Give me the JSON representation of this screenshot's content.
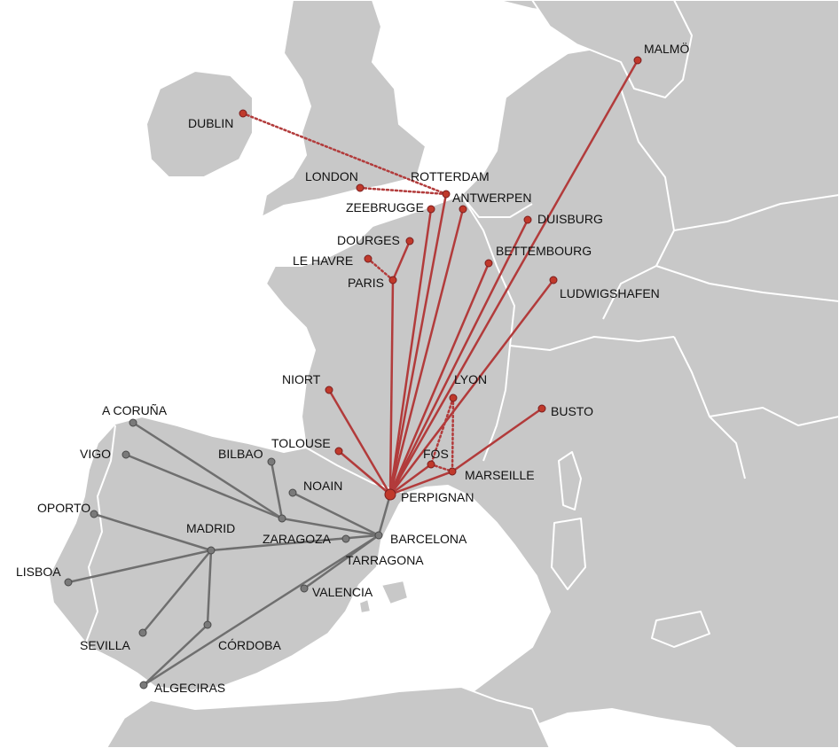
{
  "colors": {
    "red_network": "#b23b3b",
    "red_node": "#c0392b",
    "grey_network": "#6f6f6f",
    "grey_node": "#7a7a7a",
    "land": "#c8c8c8",
    "sea": "#ffffff"
  },
  "cities": [
    {
      "id": "malmo",
      "label": "MALMÖ",
      "net": "red"
    },
    {
      "id": "dublin",
      "label": "DUBLIN",
      "net": "red"
    },
    {
      "id": "london",
      "label": "LONDON",
      "net": "red"
    },
    {
      "id": "rotterdam",
      "label": "ROTTERDAM",
      "net": "red"
    },
    {
      "id": "antwerpen",
      "label": "ANTWERPEN",
      "net": "red"
    },
    {
      "id": "zeebrugge",
      "label": "ZEEBRUGGE",
      "net": "red"
    },
    {
      "id": "duisburg",
      "label": "DUISBURG",
      "net": "red"
    },
    {
      "id": "dourges",
      "label": "DOURGES",
      "net": "red"
    },
    {
      "id": "lehavre",
      "label": "LE HAVRE",
      "net": "red"
    },
    {
      "id": "paris",
      "label": "PARIS",
      "net": "red"
    },
    {
      "id": "bettembourg",
      "label": "BETTEMBOURG",
      "net": "red"
    },
    {
      "id": "ludwigshafen",
      "label": "LUDWIGSHAFEN",
      "net": "red"
    },
    {
      "id": "niort",
      "label": "NIORT",
      "net": "red"
    },
    {
      "id": "lyon",
      "label": "LYON",
      "net": "red"
    },
    {
      "id": "busto",
      "label": "BUSTO",
      "net": "red"
    },
    {
      "id": "tolouse",
      "label": "TOLOUSE",
      "net": "red"
    },
    {
      "id": "fos",
      "label": "FOS",
      "net": "red"
    },
    {
      "id": "marseille",
      "label": "MARSEILLE",
      "net": "red"
    },
    {
      "id": "perpignan",
      "label": "PERPIGNAN",
      "net": "red"
    },
    {
      "id": "acoruna",
      "label": "A CORUÑA",
      "net": "grey"
    },
    {
      "id": "vigo",
      "label": "VIGO",
      "net": "grey"
    },
    {
      "id": "bilbao",
      "label": "BILBAO",
      "net": "grey"
    },
    {
      "id": "noain",
      "label": "NOAIN",
      "net": "grey"
    },
    {
      "id": "oporto",
      "label": "OPORTO",
      "net": "grey"
    },
    {
      "id": "madrid",
      "label": "MADRID",
      "net": "grey"
    },
    {
      "id": "zaragoza",
      "label": "ZARAGOZA",
      "net": "grey"
    },
    {
      "id": "barcelona",
      "label": "BARCELONA",
      "net": "grey"
    },
    {
      "id": "tarragona",
      "label": "TARRAGONA",
      "net": "grey"
    },
    {
      "id": "lisboa",
      "label": "LISBOA",
      "net": "grey"
    },
    {
      "id": "valencia",
      "label": "VALENCIA",
      "net": "grey"
    },
    {
      "id": "sevilla",
      "label": "SEVILLA",
      "net": "grey"
    },
    {
      "id": "cordoba",
      "label": "CÓRDOBA",
      "net": "grey"
    },
    {
      "id": "algeciras",
      "label": "ALGECIRAS",
      "net": "grey"
    }
  ],
  "routes": [
    {
      "from": "perpignan",
      "to": "malmo",
      "net": "red",
      "style": "solid"
    },
    {
      "from": "perpignan",
      "to": "duisburg",
      "net": "red",
      "style": "solid"
    },
    {
      "from": "perpignan",
      "to": "antwerpen",
      "net": "red",
      "style": "solid"
    },
    {
      "from": "perpignan",
      "to": "rotterdam",
      "net": "red",
      "style": "solid"
    },
    {
      "from": "perpignan",
      "to": "zeebrugge",
      "net": "red",
      "style": "solid"
    },
    {
      "from": "perpignan",
      "to": "paris",
      "net": "red",
      "style": "solid"
    },
    {
      "from": "paris",
      "to": "dourges",
      "net": "red",
      "style": "solid"
    },
    {
      "from": "perpignan",
      "to": "bettembourg",
      "net": "red",
      "style": "solid"
    },
    {
      "from": "perpignan",
      "to": "ludwigshafen",
      "net": "red",
      "style": "solid"
    },
    {
      "from": "perpignan",
      "to": "niort",
      "net": "red",
      "style": "solid"
    },
    {
      "from": "perpignan",
      "to": "tolouse",
      "net": "red",
      "style": "solid"
    },
    {
      "from": "perpignan",
      "to": "fos",
      "net": "red",
      "style": "solid"
    },
    {
      "from": "perpignan",
      "to": "marseille",
      "net": "red",
      "style": "solid"
    },
    {
      "from": "marseille",
      "to": "busto",
      "net": "red",
      "style": "solid"
    },
    {
      "from": "dublin",
      "to": "rotterdam",
      "net": "red",
      "style": "dotted"
    },
    {
      "from": "london",
      "to": "rotterdam",
      "net": "red",
      "style": "dotted"
    },
    {
      "from": "lehavre",
      "to": "paris",
      "net": "red",
      "style": "dotted"
    },
    {
      "from": "lyon",
      "to": "fos",
      "net": "red",
      "style": "dotted"
    },
    {
      "from": "lyon",
      "to": "marseille",
      "net": "red",
      "style": "dotted"
    },
    {
      "from": "fos",
      "to": "marseille",
      "net": "red",
      "style": "dotted"
    },
    {
      "from": "perpignan",
      "to": "barcelona",
      "net": "grey",
      "style": "solid"
    },
    {
      "from": "zaragoza",
      "to": "acoruna",
      "net": "grey",
      "style": "solid"
    },
    {
      "from": "zaragoza",
      "to": "vigo",
      "net": "grey",
      "style": "solid"
    },
    {
      "from": "zaragoza",
      "to": "bilbao",
      "net": "grey",
      "style": "solid"
    },
    {
      "from": "zaragoza",
      "to": "barcelona",
      "net": "grey",
      "style": "solid"
    },
    {
      "from": "barcelona",
      "to": "noain",
      "net": "grey",
      "style": "solid"
    },
    {
      "from": "madrid",
      "to": "oporto",
      "net": "grey",
      "style": "solid"
    },
    {
      "from": "madrid",
      "to": "lisboa",
      "net": "grey",
      "style": "solid"
    },
    {
      "from": "madrid",
      "to": "barcelona",
      "net": "grey",
      "style": "solid"
    },
    {
      "from": "madrid",
      "to": "sevilla",
      "net": "grey",
      "style": "solid"
    },
    {
      "from": "madrid",
      "to": "cordoba",
      "net": "grey",
      "style": "solid"
    },
    {
      "from": "cordoba",
      "to": "algeciras",
      "net": "grey",
      "style": "solid"
    },
    {
      "from": "barcelona",
      "to": "algeciras",
      "net": "grey",
      "style": "solid"
    },
    {
      "from": "barcelona",
      "to": "valencia",
      "net": "grey",
      "style": "solid"
    }
  ]
}
